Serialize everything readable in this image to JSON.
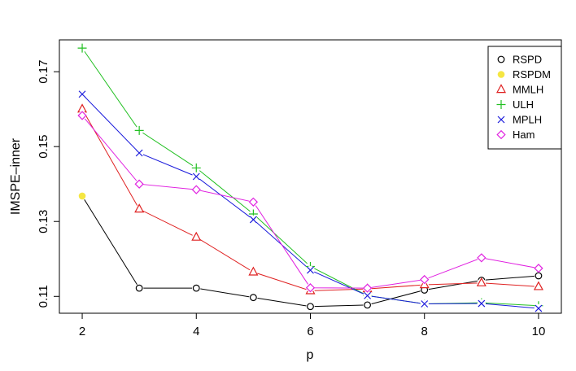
{
  "chart_data": {
    "type": "line",
    "title": "",
    "xlabel": "p",
    "ylabel": "IMSPE–inner",
    "xlim": [
      1.6,
      10.4
    ],
    "ylim": [
      0.1055,
      0.1785
    ],
    "x_ticks": [
      2,
      4,
      6,
      8,
      10
    ],
    "y_ticks": [
      0.11,
      0.13,
      0.15,
      0.17
    ],
    "x_tick_labels": [
      "2",
      "4",
      "6",
      "8",
      "10"
    ],
    "y_tick_labels": [
      "0.11",
      "0.13",
      "0.15",
      "0.17"
    ],
    "grid": false,
    "legend_position": "top-right",
    "x": [
      2,
      3,
      4,
      5,
      6,
      7,
      8,
      9,
      10
    ],
    "series": [
      {
        "name": "RSPD",
        "color": "#000000",
        "marker": "circle",
        "values": [
          null,
          0.1122,
          0.1122,
          0.1097,
          0.1073,
          0.1077,
          0.1117,
          0.1143,
          0.1155
        ]
      },
      {
        "name": "RSPDM",
        "color": "#F5E642",
        "marker": "filled-circle",
        "values": [
          0.1368,
          null,
          null,
          null,
          null,
          null,
          null,
          null,
          null
        ]
      },
      {
        "name": "MMLH",
        "color": "#DF2020",
        "marker": "triangle",
        "values": [
          0.16,
          0.1333,
          0.1258,
          0.1165,
          0.1115,
          0.112,
          0.1131,
          0.1136,
          0.1126
        ]
      },
      {
        "name": "ULH",
        "color": "#22C022",
        "marker": "plus",
        "values": [
          0.1763,
          0.1543,
          0.1443,
          0.132,
          0.118,
          0.1102,
          0.108,
          0.1083,
          0.1075
        ]
      },
      {
        "name": "MPLH",
        "color": "#1A1ADB",
        "marker": "x",
        "values": [
          0.164,
          0.1483,
          0.142,
          0.1305,
          0.117,
          0.1102,
          0.108,
          0.1081,
          0.1068
        ]
      },
      {
        "name": "Ham",
        "color": "#E020E0",
        "marker": "diamond",
        "values": [
          0.1583,
          0.14,
          0.1385,
          0.1352,
          0.1123,
          0.1122,
          0.1145,
          0.1203,
          0.1175
        ]
      }
    ],
    "connector": {
      "color": "#000000",
      "from_series": "RSPDM",
      "to_series": "RSPD",
      "points": [
        [
          2,
          0.1368
        ],
        [
          3,
          0.1122
        ]
      ]
    }
  }
}
